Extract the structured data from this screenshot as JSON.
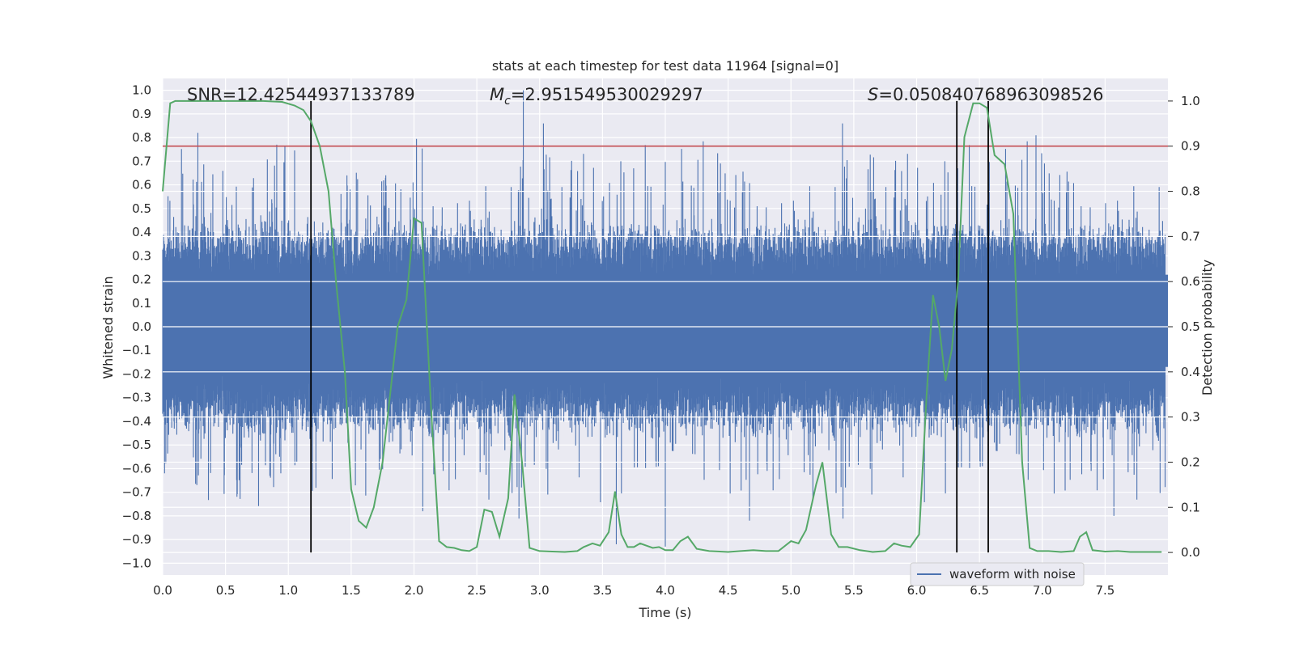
{
  "chart_data": {
    "type": "line",
    "title": "stats at each timestep for test data 11964 [signal=0]",
    "xlabel": "Time (s)",
    "ylabel": "Whitened strain",
    "y2label": "Detection probability",
    "xlim": [
      0.0,
      8.0
    ],
    "ylim": [
      -1.05,
      1.05
    ],
    "y2lim": [
      -0.05,
      1.05
    ],
    "xticks": [
      "0.0",
      "0.5",
      "1.0",
      "1.5",
      "2.0",
      "2.5",
      "3.0",
      "3.5",
      "4.0",
      "4.5",
      "5.0",
      "5.5",
      "6.0",
      "6.5",
      "7.0",
      "7.5"
    ],
    "yticks": [
      "1.0",
      "0.9",
      "0.8",
      "0.7",
      "0.6",
      "0.5",
      "0.4",
      "0.3",
      "0.2",
      "0.1",
      "0.0",
      "−0.1",
      "−0.2",
      "−0.3",
      "−0.4",
      "−0.5",
      "−0.6",
      "−0.7",
      "−0.8",
      "−0.9",
      "−1.0"
    ],
    "y2ticks": [
      "1.0",
      "0.9",
      "0.8",
      "0.7",
      "0.6",
      "0.5",
      "0.4",
      "0.3",
      "0.2",
      "0.1",
      "0.0"
    ],
    "annotations": {
      "snr": "SNR=12.42544937133789",
      "mc_value": "=2.951549530029297",
      "s_value": "=0.050840768963098526"
    },
    "legend": {
      "placement": "bottom-right",
      "entries": [
        "waveform with noise"
      ]
    },
    "grid": true,
    "colors": {
      "waveform": "#4c72b0",
      "probability": "#55a868",
      "threshold": "#c44e52",
      "markers": "#000000",
      "background": "#eaeaf2",
      "grid": "#ffffff"
    },
    "threshold_probability": 0.9,
    "vertical_markers": [
      1.18,
      6.32,
      6.57
    ],
    "series": [
      {
        "name": "waveform with noise",
        "axis": "left",
        "description": "dense noisy whitened strain sampled across 0–8 s",
        "range": [
          -0.95,
          1.0
        ]
      },
      {
        "axis": "right",
        "points": [
          [
            0.0,
            0.8
          ],
          [
            0.06,
            0.995
          ],
          [
            0.1,
            1.0
          ],
          [
            0.3,
            1.0
          ],
          [
            0.6,
            1.0
          ],
          [
            0.8,
            1.0
          ],
          [
            0.95,
            0.998
          ],
          [
            1.05,
            0.99
          ],
          [
            1.12,
            0.98
          ],
          [
            1.18,
            0.955
          ],
          [
            1.25,
            0.9
          ],
          [
            1.32,
            0.8
          ],
          [
            1.38,
            0.6
          ],
          [
            1.45,
            0.4
          ],
          [
            1.5,
            0.14
          ],
          [
            1.56,
            0.07
          ],
          [
            1.62,
            0.055
          ],
          [
            1.68,
            0.1
          ],
          [
            1.75,
            0.2
          ],
          [
            1.87,
            0.5
          ],
          [
            1.94,
            0.56
          ],
          [
            2.0,
            0.74
          ],
          [
            2.06,
            0.73
          ],
          [
            2.14,
            0.3
          ],
          [
            2.2,
            0.025
          ],
          [
            2.26,
            0.012
          ],
          [
            2.32,
            0.01
          ],
          [
            2.38,
            0.005
          ],
          [
            2.44,
            0.003
          ],
          [
            2.5,
            0.012
          ],
          [
            2.56,
            0.095
          ],
          [
            2.62,
            0.09
          ],
          [
            2.68,
            0.035
          ],
          [
            2.75,
            0.12
          ],
          [
            2.8,
            0.35
          ],
          [
            2.86,
            0.2
          ],
          [
            2.92,
            0.01
          ],
          [
            3.0,
            0.003
          ],
          [
            3.1,
            0.002
          ],
          [
            3.2,
            0.001
          ],
          [
            3.3,
            0.003
          ],
          [
            3.35,
            0.012
          ],
          [
            3.42,
            0.02
          ],
          [
            3.48,
            0.015
          ],
          [
            3.55,
            0.045
          ],
          [
            3.6,
            0.135
          ],
          [
            3.65,
            0.04
          ],
          [
            3.7,
            0.012
          ],
          [
            3.75,
            0.012
          ],
          [
            3.8,
            0.02
          ],
          [
            3.85,
            0.015
          ],
          [
            3.9,
            0.01
          ],
          [
            3.95,
            0.012
          ],
          [
            4.0,
            0.005
          ],
          [
            4.06,
            0.005
          ],
          [
            4.12,
            0.025
          ],
          [
            4.18,
            0.035
          ],
          [
            4.25,
            0.008
          ],
          [
            4.35,
            0.003
          ],
          [
            4.5,
            0.001
          ],
          [
            4.6,
            0.003
          ],
          [
            4.7,
            0.005
          ],
          [
            4.8,
            0.003
          ],
          [
            4.9,
            0.003
          ],
          [
            5.0,
            0.025
          ],
          [
            5.06,
            0.02
          ],
          [
            5.12,
            0.05
          ],
          [
            5.2,
            0.15
          ],
          [
            5.25,
            0.2
          ],
          [
            5.32,
            0.04
          ],
          [
            5.38,
            0.012
          ],
          [
            5.45,
            0.012
          ],
          [
            5.55,
            0.005
          ],
          [
            5.65,
            0.001
          ],
          [
            5.75,
            0.003
          ],
          [
            5.82,
            0.02
          ],
          [
            5.88,
            0.015
          ],
          [
            5.95,
            0.012
          ],
          [
            6.02,
            0.04
          ],
          [
            6.08,
            0.35
          ],
          [
            6.13,
            0.57
          ],
          [
            6.18,
            0.5
          ],
          [
            6.23,
            0.38
          ],
          [
            6.28,
            0.45
          ],
          [
            6.33,
            0.6
          ],
          [
            6.38,
            0.92
          ],
          [
            6.45,
            0.995
          ],
          [
            6.5,
            0.995
          ],
          [
            6.56,
            0.985
          ],
          [
            6.62,
            0.88
          ],
          [
            6.7,
            0.86
          ],
          [
            6.77,
            0.75
          ],
          [
            6.84,
            0.2
          ],
          [
            6.9,
            0.01
          ],
          [
            6.96,
            0.003
          ],
          [
            7.05,
            0.003
          ],
          [
            7.15,
            0.001
          ],
          [
            7.25,
            0.003
          ],
          [
            7.3,
            0.035
          ],
          [
            7.35,
            0.045
          ],
          [
            7.4,
            0.005
          ],
          [
            7.5,
            0.002
          ],
          [
            7.6,
            0.003
          ],
          [
            7.7,
            0.001
          ],
          [
            7.8,
            0.001
          ],
          [
            7.95,
            0.001
          ]
        ]
      }
    ]
  }
}
